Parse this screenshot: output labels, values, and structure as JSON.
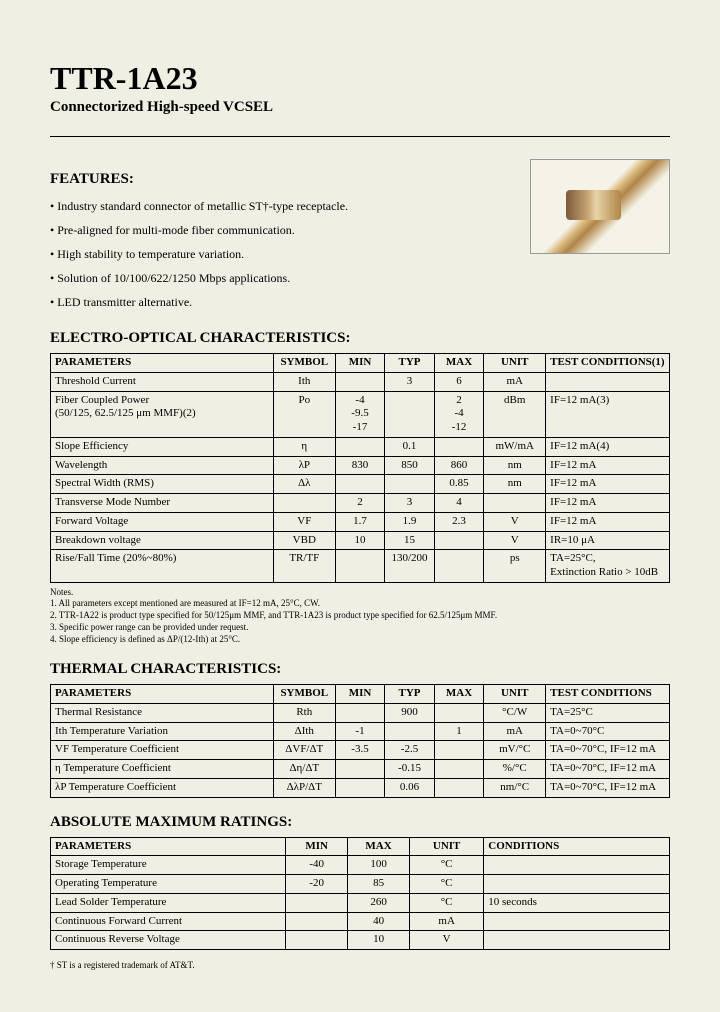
{
  "title": "TTR-1A23",
  "subtitle": "Connectorized High-speed VCSEL",
  "features_heading": "FEATURES:",
  "features": [
    "• Industry standard connector of metallic ST†-type receptacle.",
    "• Pre-aligned for multi-mode fiber communication.",
    "• High stability to temperature variation.",
    "• Solution of 10/100/622/1250 Mbps applications.",
    "• LED transmitter alternative."
  ],
  "eo_heading": "ELECTRO-OPTICAL CHARACTERISTICS:",
  "eo_headers": [
    "PARAMETERS",
    "SYMBOL",
    "MIN",
    "TYP",
    "MAX",
    "UNIT",
    "TEST CONDITIONS(1)"
  ],
  "eo_rows": [
    {
      "p": "Threshold Current",
      "s": "Ith",
      "min": "",
      "typ": "3",
      "max": "6",
      "u": "mA",
      "tc": ""
    },
    {
      "p": "Fiber Coupled Power\n(50/125, 62.5/125 μm MMF)(2)",
      "s": "Po",
      "min": "-4\n-9.5\n-17",
      "typ": "",
      "max": "2\n-4\n-12",
      "u": "dBm",
      "tc": "IF=12 mA(3)"
    },
    {
      "p": "Slope Efficiency",
      "s": "η",
      "min": "",
      "typ": "0.1",
      "max": "",
      "u": "mW/mA",
      "tc": "IF=12 mA(4)"
    },
    {
      "p": "Wavelength",
      "s": "λP",
      "min": "830",
      "typ": "850",
      "max": "860",
      "u": "nm",
      "tc": "IF=12 mA"
    },
    {
      "p": "Spectral Width (RMS)",
      "s": "Δλ",
      "min": "",
      "typ": "",
      "max": "0.85",
      "u": "nm",
      "tc": "IF=12 mA"
    },
    {
      "p": "Transverse Mode Number",
      "s": "",
      "min": "2",
      "typ": "3",
      "max": "4",
      "u": "",
      "tc": "IF=12 mA"
    },
    {
      "p": "Forward Voltage",
      "s": "VF",
      "min": "1.7",
      "typ": "1.9",
      "max": "2.3",
      "u": "V",
      "tc": "IF=12 mA"
    },
    {
      "p": "Breakdown voltage",
      "s": "VBD",
      "min": "10",
      "typ": "15",
      "max": "",
      "u": "V",
      "tc": "IR=10 μA"
    },
    {
      "p": "Rise/Fall Time (20%~80%)",
      "s": "TR/TF",
      "min": "",
      "typ": "130/200",
      "max": "",
      "u": "ps",
      "tc": "TA=25°C,\nExtinction Ratio > 10dB"
    }
  ],
  "eo_notes_title": "Notes.",
  "eo_notes": [
    "1. All parameters except mentioned are measured at IF=12 mA, 25°C, CW.",
    "2. TTR-1A22 is product type specified for 50/125μm MMF, and TTR-1A23 is product type specified for 62.5/125μm MMF.",
    "3. Specific power range can be provided under request.",
    "4. Slope efficiency is defined as ΔP/(12-Ith) at 25°C."
  ],
  "th_heading": "THERMAL CHARACTERISTICS:",
  "th_headers": [
    "PARAMETERS",
    "SYMBOL",
    "MIN",
    "TYP",
    "MAX",
    "UNIT",
    "TEST CONDITIONS"
  ],
  "th_rows": [
    {
      "p": "Thermal Resistance",
      "s": "Rth",
      "min": "",
      "typ": "900",
      "max": "",
      "u": "°C/W",
      "tc": "TA=25°C"
    },
    {
      "p": "Ith Temperature Variation",
      "s": "ΔIth",
      "min": "-1",
      "typ": "",
      "max": "1",
      "u": "mA",
      "tc": "TA=0~70°C"
    },
    {
      "p": "VF Temperature Coefficient",
      "s": "ΔVF/ΔT",
      "min": "-3.5",
      "typ": "-2.5",
      "max": "",
      "u": "mV/°C",
      "tc": "TA=0~70°C, IF=12 mA"
    },
    {
      "p": "η Temperature Coefficient",
      "s": "Δη/ΔT",
      "min": "",
      "typ": "-0.15",
      "max": "",
      "u": "%/°C",
      "tc": "TA=0~70°C, IF=12 mA"
    },
    {
      "p": "λP Temperature Coefficient",
      "s": "ΔλP/ΔT",
      "min": "",
      "typ": "0.06",
      "max": "",
      "u": "nm/°C",
      "tc": "TA=0~70°C, IF=12 mA"
    }
  ],
  "amr_heading": "ABSOLUTE MAXIMUM RATINGS:",
  "amr_headers": [
    "PARAMETERS",
    "MIN",
    "MAX",
    "UNIT",
    "CONDITIONS"
  ],
  "amr_rows": [
    {
      "p": "Storage Temperature",
      "min": "-40",
      "max": "100",
      "u": "°C",
      "c": ""
    },
    {
      "p": "Operating Temperature",
      "min": "-20",
      "max": "85",
      "u": "°C",
      "c": ""
    },
    {
      "p": "Lead Solder Temperature",
      "min": "",
      "max": "260",
      "u": "°C",
      "c": "10 seconds"
    },
    {
      "p": "Continuous Forward Current",
      "min": "",
      "max": "40",
      "u": "mA",
      "c": ""
    },
    {
      "p": "Continuous Reverse Voltage",
      "min": "",
      "max": "10",
      "u": "V",
      "c": ""
    }
  ],
  "footnote": "† ST is a registered trademark of AT&T.",
  "col_widths": {
    "eo": [
      "36%",
      "10%",
      "8%",
      "8%",
      "8%",
      "10%",
      "20%"
    ],
    "th": [
      "36%",
      "10%",
      "8%",
      "8%",
      "8%",
      "10%",
      "20%"
    ],
    "amr": [
      "38%",
      "10%",
      "10%",
      "12%",
      "30%"
    ]
  }
}
